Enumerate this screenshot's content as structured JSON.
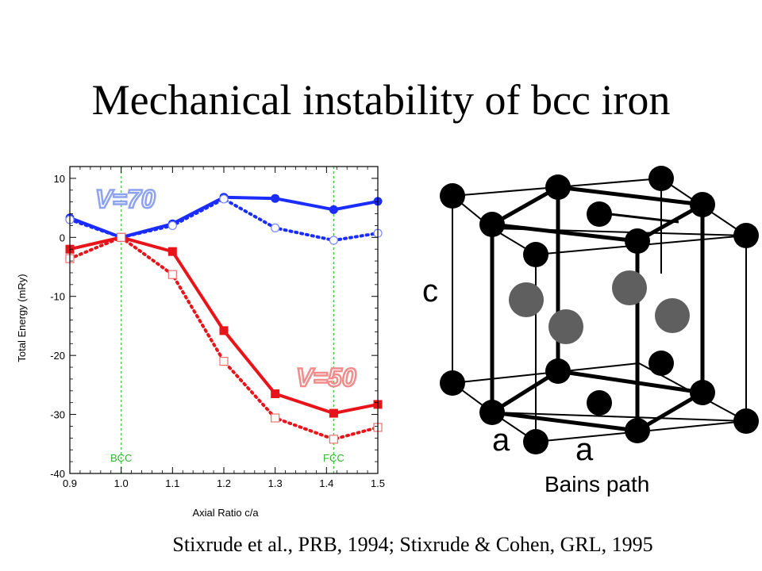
{
  "slide": {
    "title": "Mechanical instability of bcc iron",
    "citation": "Stixrude et al., PRB, 1994; Stixrude & Cohen, GRL, 1995",
    "caption": "Bains path"
  },
  "crystal": {
    "label_c": "c",
    "label_a1": "a",
    "label_a2": "a"
  },
  "chart_data": {
    "type": "line",
    "xlabel": "Axial Ratio c/a",
    "ylabel": "Total Energy (mRy)",
    "xlim": [
      0.9,
      1.5
    ],
    "ylim": [
      -40,
      12
    ],
    "xticks": [
      "0.9",
      "1.0",
      "1.1",
      "1.2",
      "1.3",
      "1.4",
      "1.5"
    ],
    "yticks": [
      "10",
      "0",
      "-10",
      "-20",
      "-30",
      "-40"
    ],
    "vlines": [
      {
        "x": 1.0,
        "label": "BCC"
      },
      {
        "x": 1.414,
        "label": "FCC"
      }
    ],
    "annotations": [
      {
        "text": "V=70",
        "color": "#8ea2f0"
      },
      {
        "text": "V=50",
        "color": "#f28b8b"
      }
    ],
    "series": [
      {
        "group": "V=70",
        "style": "solid",
        "marker": "filled-circle",
        "color": "#1a2cff",
        "x": [
          0.9,
          1.0,
          1.1,
          1.2,
          1.3,
          1.414,
          1.5
        ],
        "values": [
          3.3,
          0.0,
          2.3,
          6.8,
          6.6,
          4.7,
          6.1
        ]
      },
      {
        "group": "V=70",
        "style": "dotted",
        "marker": "open-circle",
        "color": "#1a2cff",
        "x": [
          0.9,
          1.0,
          1.1,
          1.2,
          1.3,
          1.414,
          1.5
        ],
        "values": [
          3.0,
          0.0,
          2.0,
          6.5,
          1.6,
          -0.5,
          0.7
        ]
      },
      {
        "group": "V=50",
        "style": "solid",
        "marker": "filled-square",
        "color": "#e8141a",
        "x": [
          0.9,
          1.0,
          1.1,
          1.2,
          1.3,
          1.414,
          1.5
        ],
        "values": [
          -2.0,
          0.0,
          -2.4,
          -15.8,
          -26.5,
          -29.8,
          -28.3
        ]
      },
      {
        "group": "V=50",
        "style": "dotted",
        "marker": "open-square",
        "color": "#e8141a",
        "x": [
          0.9,
          1.0,
          1.1,
          1.2,
          1.3,
          1.414,
          1.5
        ],
        "values": [
          -3.6,
          0.0,
          -6.3,
          -21.0,
          -30.6,
          -34.2,
          -32.2
        ]
      }
    ]
  }
}
